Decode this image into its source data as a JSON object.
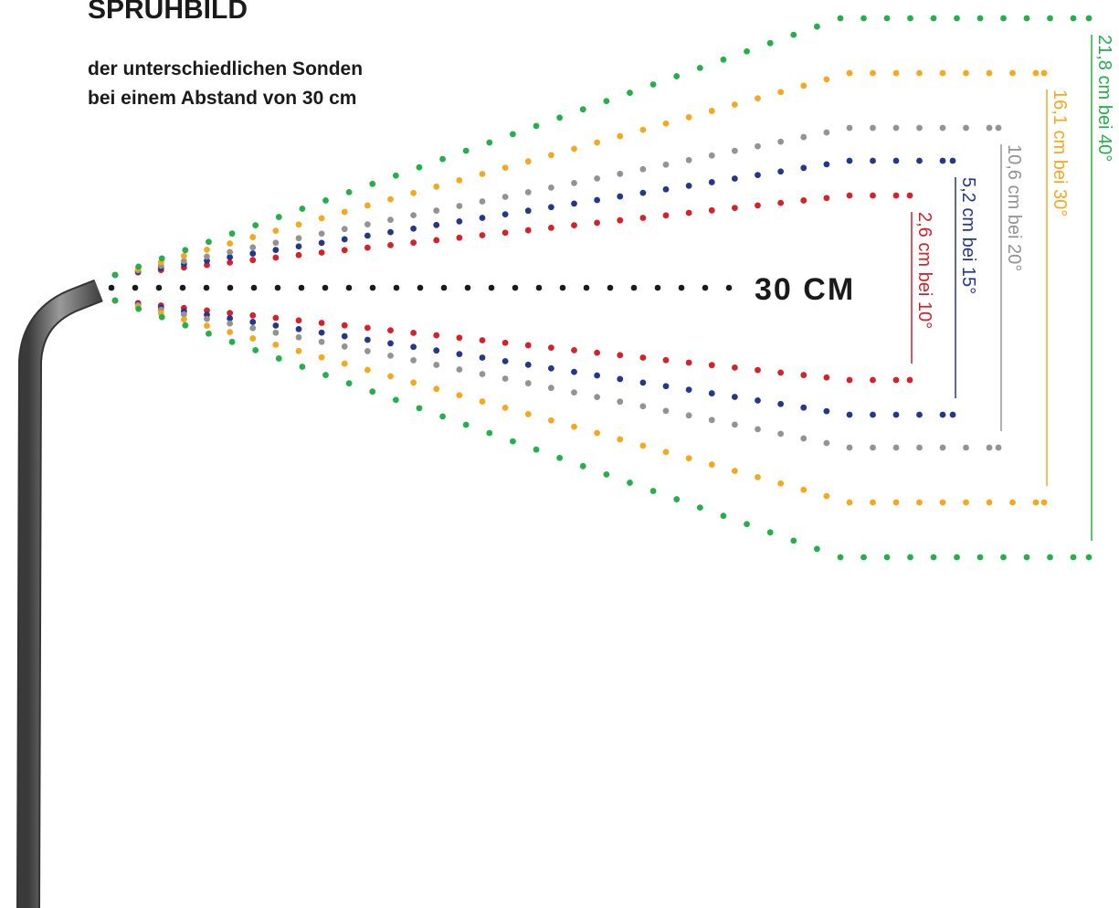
{
  "header": {
    "title": "SPRÜHBILD",
    "subtitle": [
      "der unterschiedlichen Sonden",
      "bei einem Abstand von 30 cm"
    ]
  },
  "distance_label": "30 CM",
  "probes": [
    {
      "label": "2,6 cm bei 10°"
    },
    {
      "label": "5,2 cm bei 15°"
    },
    {
      "label": "10,6 cm bei 20°"
    },
    {
      "label": "16,1 cm bei 30°"
    },
    {
      "label": "21,8 cm bei 40°"
    }
  ]
}
